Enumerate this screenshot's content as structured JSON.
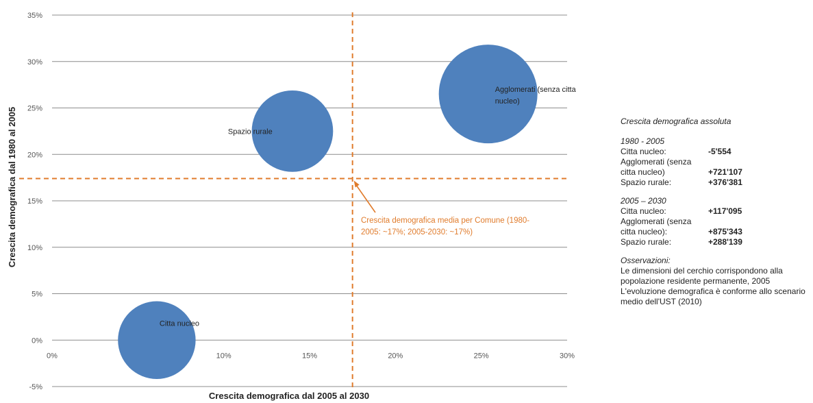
{
  "chart_data": {
    "type": "bubble",
    "xlabel": "Crescita demografica dal 2005 al 2030",
    "ylabel": "Crescita demografica dal 1980 al 2005",
    "xlim": [
      0,
      30
    ],
    "ylim": [
      -5,
      35
    ],
    "xticks": [
      "0%",
      "5%",
      "10%",
      "15%",
      "20%",
      "25%",
      "30%"
    ],
    "yticks": [
      "-5%",
      "0%",
      "5%",
      "10%",
      "15%",
      "20%",
      "25%",
      "30%",
      "35%"
    ],
    "grid": "horizontal",
    "bubble_color": "#4f81bd",
    "reference_color": "#e07b2b",
    "bubbles": [
      {
        "label": "Citta nucleo",
        "x": 6.1,
        "y": 0.0,
        "size": 0.62
      },
      {
        "label": "Spazio rurale",
        "x": 14.0,
        "y": 22.5,
        "size": 0.68
      },
      {
        "label": "Agglomerati (senza citta nucleo)",
        "x": 25.4,
        "y": 26.5,
        "size": 1.0
      }
    ],
    "reference_x": 17.5,
    "reference_y": 17.4,
    "annotation": {
      "lines": [
        "Crescita demografica media per Comune (1980-",
        "2005: ~17%; 2005-2030: ~17%)"
      ]
    }
  },
  "legend": {
    "title": "Crescita demografica assoluta",
    "period1": "1980 - 2005",
    "period1_rows": [
      {
        "label": "Citta nucleo:",
        "value": "-5'554"
      },
      {
        "label": "Agglomerati (senza citta nucleo)",
        "value": "+721'107"
      },
      {
        "label": "Spazio rurale:",
        "value": "+376'381"
      }
    ],
    "period2": "2005 – 2030",
    "period2_rows": [
      {
        "label": "Citta nucleo:",
        "value": "+117'095"
      },
      {
        "label": "Agglomerati (senza citta nucleo):",
        "value": "+875'343"
      },
      {
        "label": "Spazio rurale:",
        "value": "+288'139"
      }
    ],
    "notes_title": "Osservazioni:",
    "notes": [
      "Le dimensioni del cerchio corrispondono alla popolazione residente permanente, 2005",
      "L'evoluzione demografica è conforme allo scenario medio dell'UST (2010)"
    ]
  }
}
